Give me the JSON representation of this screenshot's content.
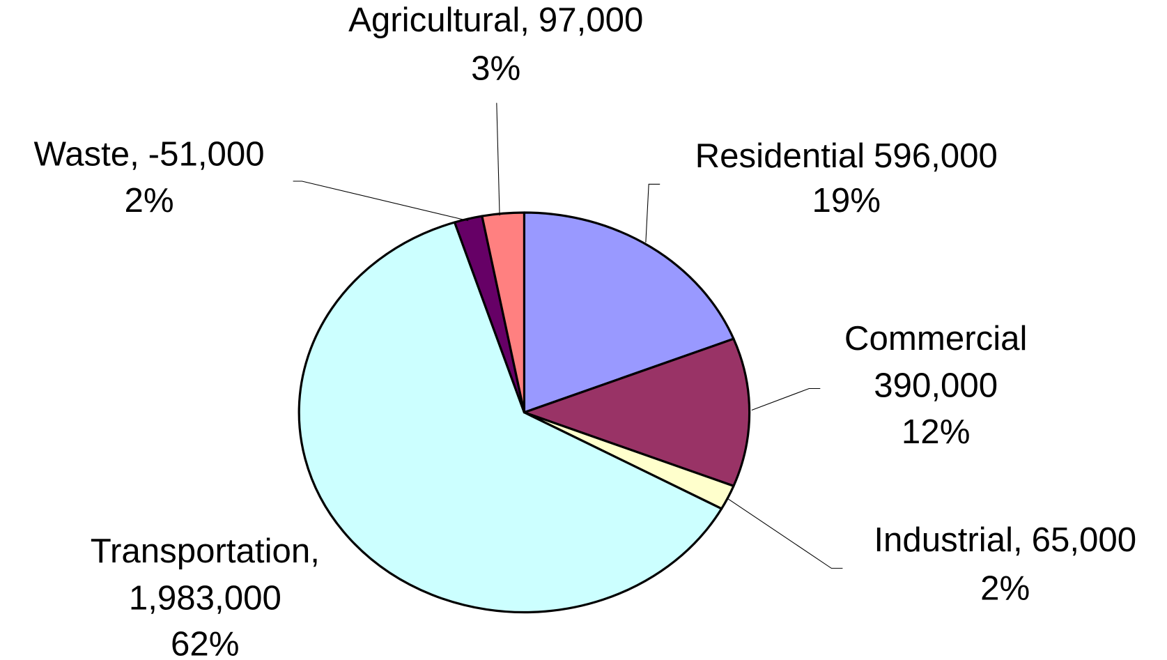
{
  "chart_data": {
    "type": "pie",
    "categories": [
      "Residential",
      "Commercial",
      "Industrial,",
      "Transportation,",
      "Waste,",
      "Agricultural,"
    ],
    "values": [
      596000,
      390000,
      65000,
      1983000,
      -51000,
      97000
    ],
    "value_labels": [
      "596,000",
      "390,000",
      "65,000",
      "1,983,000",
      "-51,000",
      "97,000"
    ],
    "percents": [
      19,
      12,
      2,
      62,
      2,
      3
    ],
    "percent_labels": [
      "19%",
      "12%",
      "2%",
      "62%",
      "2%",
      "3%"
    ],
    "colors": [
      "#9999ff",
      "#993366",
      "#ffffcc",
      "#ccffff",
      "#660066",
      "#ff8080"
    ]
  }
}
